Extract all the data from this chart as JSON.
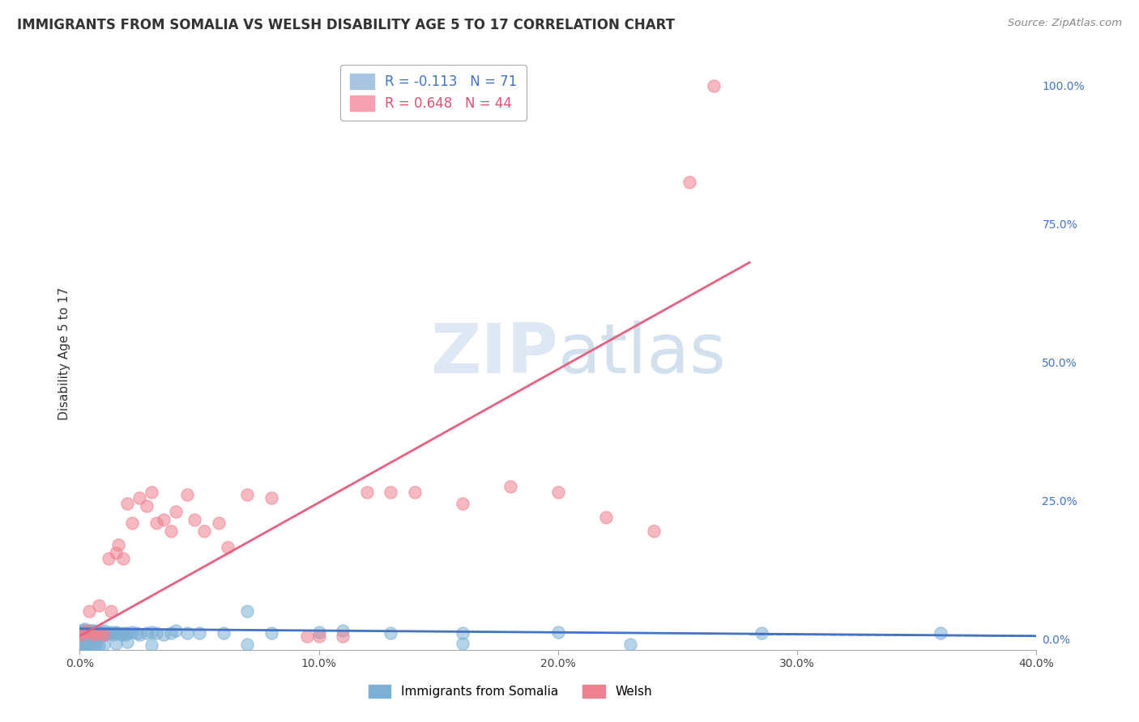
{
  "title": "IMMIGRANTS FROM SOMALIA VS WELSH DISABILITY AGE 5 TO 17 CORRELATION CHART",
  "source_text": "Source: ZipAtlas.com",
  "ylabel": "Disability Age 5 to 17",
  "xlim": [
    0.0,
    0.4
  ],
  "ylim": [
    -0.02,
    1.05
  ],
  "x_ticks": [
    0.0,
    0.1,
    0.2,
    0.3,
    0.4
  ],
  "x_tick_labels": [
    "0.0%",
    "10.0%",
    "20.0%",
    "30.0%",
    "40.0%"
  ],
  "y_ticks_right": [
    0.0,
    0.25,
    0.5,
    0.75,
    1.0
  ],
  "y_tick_labels_right": [
    "0.0%",
    "25.0%",
    "50.0%",
    "75.0%",
    "100.0%"
  ],
  "series1_name": "Immigrants from Somalia",
  "series1_color": "#7bafd4",
  "series2_name": "Welsh",
  "series2_color": "#f08090",
  "watermark": "ZIPatlas",
  "background_color": "#ffffff",
  "grid_color": "#cccccc",
  "title_color": "#333333",
  "right_axis_color": "#4472c4",
  "series1_x": [
    0.001,
    0.001,
    0.001,
    0.001,
    0.002,
    0.002,
    0.002,
    0.002,
    0.002,
    0.003,
    0.003,
    0.003,
    0.003,
    0.003,
    0.004,
    0.004,
    0.004,
    0.004,
    0.004,
    0.005,
    0.005,
    0.005,
    0.005,
    0.006,
    0.006,
    0.006,
    0.006,
    0.007,
    0.007,
    0.007,
    0.008,
    0.008,
    0.008,
    0.009,
    0.009,
    0.01,
    0.01,
    0.01,
    0.011,
    0.011,
    0.012,
    0.013,
    0.014,
    0.015,
    0.015,
    0.016,
    0.017,
    0.018,
    0.019,
    0.02,
    0.022,
    0.024,
    0.025,
    0.028,
    0.03,
    0.032,
    0.035,
    0.038,
    0.04,
    0.045,
    0.05,
    0.06,
    0.07,
    0.08,
    0.1,
    0.11,
    0.13,
    0.16,
    0.2,
    0.285,
    0.36
  ],
  "series1_y": [
    0.01,
    0.015,
    0.008,
    0.005,
    0.01,
    0.015,
    0.008,
    0.012,
    0.018,
    0.01,
    0.012,
    0.008,
    0.005,
    0.015,
    0.01,
    0.008,
    0.012,
    0.015,
    0.005,
    0.01,
    0.012,
    0.008,
    0.015,
    0.01,
    0.008,
    0.012,
    0.015,
    0.01,
    0.008,
    0.012,
    0.01,
    0.008,
    0.005,
    0.01,
    0.012,
    0.01,
    0.008,
    0.015,
    0.01,
    0.008,
    0.01,
    0.012,
    0.008,
    0.01,
    0.012,
    0.01,
    0.008,
    0.01,
    0.008,
    0.01,
    0.012,
    0.01,
    0.008,
    0.01,
    0.012,
    0.01,
    0.008,
    0.01,
    0.015,
    0.01,
    0.01,
    0.01,
    0.05,
    0.01,
    0.012,
    0.015,
    0.01,
    0.01,
    0.012,
    0.01,
    0.01
  ],
  "series1_y_extra": [
    -0.008,
    -0.01,
    -0.012,
    -0.008,
    -0.01,
    -0.008,
    -0.005,
    -0.01,
    -0.008,
    -0.012,
    -0.01,
    -0.008,
    -0.005,
    -0.012,
    -0.01,
    -0.008,
    -0.01
  ],
  "series1_x_extra": [
    0.001,
    0.002,
    0.002,
    0.003,
    0.003,
    0.004,
    0.005,
    0.006,
    0.007,
    0.008,
    0.01,
    0.015,
    0.02,
    0.03,
    0.07,
    0.16,
    0.23
  ],
  "series2_x": [
    0.001,
    0.002,
    0.003,
    0.004,
    0.005,
    0.006,
    0.007,
    0.008,
    0.009,
    0.01,
    0.012,
    0.013,
    0.015,
    0.016,
    0.018,
    0.02,
    0.022,
    0.025,
    0.028,
    0.03,
    0.032,
    0.035,
    0.038,
    0.04,
    0.045,
    0.048,
    0.052,
    0.058,
    0.062,
    0.07,
    0.08,
    0.095,
    0.1,
    0.11,
    0.12,
    0.13,
    0.14,
    0.16,
    0.18,
    0.2,
    0.22,
    0.24,
    0.255,
    0.265
  ],
  "series2_y": [
    0.008,
    0.01,
    0.015,
    0.05,
    0.01,
    0.008,
    0.012,
    0.06,
    0.01,
    0.008,
    0.145,
    0.05,
    0.155,
    0.17,
    0.145,
    0.245,
    0.21,
    0.255,
    0.24,
    0.265,
    0.21,
    0.215,
    0.195,
    0.23,
    0.26,
    0.215,
    0.195,
    0.21,
    0.165,
    0.26,
    0.255,
    0.005,
    0.005,
    0.005,
    0.265,
    0.265,
    0.265,
    0.245,
    0.275,
    0.265,
    0.22,
    0.195,
    0.825,
    1.0
  ],
  "series1_line_x": [
    0.0,
    0.4
  ],
  "series1_line_y": [
    0.018,
    0.005
  ],
  "series2_line_x": [
    0.0,
    0.28
  ],
  "series2_line_y": [
    0.005,
    0.68
  ],
  "legend_R1": "R = -0.113",
  "legend_N1": "N = 71",
  "legend_R2": "R = 0.648",
  "legend_N2": "N = 44"
}
